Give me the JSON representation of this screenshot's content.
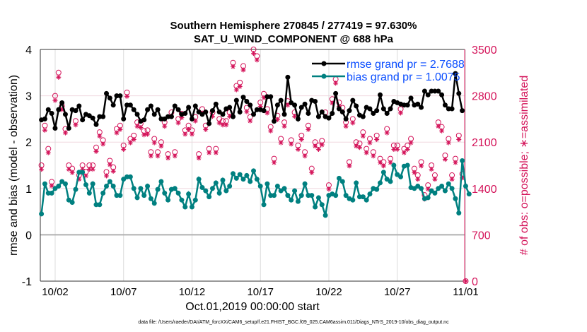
{
  "chart_data": {
    "type": "line",
    "title": [
      "Southern Hemisphere 270845 / 277419 = 97.630%",
      "SAT_U_WIND_COMPONENT @ 688 hPa"
    ],
    "xlabel": "Oct.01,2019 00:00:00 start",
    "ylabel": "rmse and bias (model - observation)",
    "ylabel_right": "# of obs: o=possible; ∗=assimilated",
    "ylim": [
      -1,
      4
    ],
    "ylim_right": [
      0,
      3500
    ],
    "yticks": [
      "-1",
      "0",
      "1",
      "2",
      "3",
      "4"
    ],
    "yticks_right": [
      "0",
      "700",
      "1400",
      "2100",
      "2800",
      "3500"
    ],
    "xticks": [
      "10/02",
      "10/07",
      "10/12",
      "10/17",
      "10/22",
      "10/27",
      "11/01"
    ],
    "x_unit": "days since Oct.01,2019 00:00:00, 6-hourly",
    "legend_position": "top-right",
    "series": [
      {
        "name": "rmse grand pr = 2.7688",
        "color": "#000000",
        "values": [
          2.48,
          2.5,
          2.7,
          2.62,
          2.3,
          2.7,
          2.85,
          2.6,
          2.3,
          2.7,
          2.68,
          2.78,
          2.48,
          2.6,
          2.57,
          2.52,
          2.38,
          2.55,
          2.55,
          3.05,
          2.95,
          2.8,
          3.0,
          3.0,
          2.5,
          2.8,
          2.8,
          2.7,
          2.6,
          2.45,
          2.48,
          2.7,
          2.78,
          2.6,
          2.7,
          2.5,
          2.5,
          2.55,
          2.55,
          2.78,
          2.7,
          2.6,
          2.62,
          2.75,
          2.5,
          2.78,
          2.65,
          2.6,
          2.65,
          2.4,
          2.68,
          2.82,
          2.65,
          2.6,
          2.72,
          2.75,
          2.55,
          2.9,
          2.65,
          2.97,
          2.88,
          2.8,
          2.6,
          2.7,
          2.7,
          2.68,
          2.98,
          2.98,
          2.45,
          2.8,
          2.9,
          2.6,
          3.4,
          2.85,
          2.8,
          2.5,
          2.75,
          2.82,
          2.62,
          2.9,
          2.88,
          2.55,
          2.65,
          2.55,
          2.52,
          2.62,
          3.05,
          2.72,
          2.65,
          2.5,
          2.68,
          2.9,
          2.78,
          2.58,
          2.55,
          2.75,
          2.72,
          2.62,
          2.68,
          3.02,
          2.72,
          2.62,
          2.72,
          2.88,
          2.85,
          2.82,
          2.8,
          2.8,
          2.95,
          2.8,
          2.82,
          2.75,
          3.1,
          3.02,
          3.1,
          3.1,
          3.1,
          3.02,
          2.8,
          2.72,
          2.72,
          3.48,
          3.05,
          2.68
        ]
      },
      {
        "name": "bias grand pr = 1.0075",
        "color": "#008080",
        "values": [
          0.45,
          1.1,
          0.9,
          0.9,
          1.0,
          1.05,
          1.15,
          1.1,
          0.75,
          0.7,
          0.98,
          1.35,
          1.35,
          1.08,
          0.9,
          1.1,
          0.65,
          0.65,
          0.9,
          1.05,
          1.15,
          1.05,
          0.85,
          0.85,
          1.2,
          1.25,
          1.25,
          1.0,
          0.8,
          1.0,
          0.85,
          1.05,
          0.78,
          0.68,
          0.98,
          1.15,
          0.9,
          0.75,
          0.98,
          1.0,
          0.9,
          0.75,
          0.6,
          0.88,
          0.6,
          0.75,
          1.2,
          1.02,
          0.95,
          0.82,
          1.0,
          1.12,
          0.9,
          1.18,
          0.95,
          1.05,
          1.32,
          1.22,
          1.3,
          1.2,
          1.28,
          1.15,
          1.38,
          1.2,
          1.05,
          0.65,
          1.1,
          0.85,
          0.85,
          1.05,
          0.95,
          1.0,
          0.85,
          0.75,
          0.95,
          0.72,
          0.85,
          1.1,
          0.85,
          0.85,
          0.6,
          0.8,
          0.65,
          0.42,
          0.85,
          0.88,
          0.85,
          1.22,
          1.15,
          0.85,
          0.78,
          0.75,
          1.12,
          0.82,
          0.82,
          0.75,
          0.88,
          1.0,
          0.98,
          1.12,
          1.35,
          1.2,
          1.15,
          1.5,
          1.3,
          1.25,
          1.48,
          1.5,
          1.02,
          1.0,
          1.05,
          1.0,
          0.78,
          0.8,
          0.95,
          0.9,
          1.0,
          1.05,
          0.95,
          1.1,
          1.0,
          0.78,
          0.47,
          1.6,
          1.05,
          0.88
        ]
      },
      {
        "name": "obs possible",
        "color": "#d4145a",
        "marker": "o",
        "values": [
          1750,
          2350,
          2000,
          1500,
          2800,
          3150,
          2650,
          2300,
          1750,
          1700,
          2420,
          1600,
          1750,
          1650,
          1750,
          1750,
          2020,
          2250,
          2130,
          1650,
          1820,
          1720,
          2300,
          2350,
          2050,
          2850,
          2150,
          2200,
          2400,
          2380,
          2270,
          2280,
          1950,
          2150,
          1950,
          2100,
          2400,
          1920,
          2550,
          1950,
          2450,
          2530,
          2280,
          2350,
          2280,
          2480,
          1920,
          2600,
          2350,
          2000,
          2550,
          2000,
          2450,
          2420,
          2420,
          2550,
          3300,
          2950,
          3000,
          3250,
          2620,
          2480,
          3500,
          3400,
          2700,
          2830,
          2600,
          2330,
          1850,
          2500,
          2150,
          2400,
          2720,
          2130,
          2550,
          2050,
          2200,
          1950,
          2350,
          1700,
          2100,
          2050,
          2120,
          2550,
          1450,
          2750,
          3050,
          2700,
          2620,
          2400,
          1800,
          2450,
          2100,
          2080,
          2250,
          2000,
          2150,
          1950,
          2200,
          1850,
          1800,
          2300,
          1850,
          2050,
          2050,
          2600,
          2000,
          2050,
          2150,
          1700,
          1600,
          1800,
          1300,
          1450,
          1750,
          1600,
          2400,
          2330,
          1900,
          2150,
          1600,
          1850,
          2200,
          1620,
          0
        ]
      },
      {
        "name": "obs assimilated",
        "color": "#d4145a",
        "marker": "*",
        "values": [
          1690,
          2280,
          1940,
          1440,
          2730,
          3080,
          2590,
          2240,
          1690,
          1640,
          2360,
          1540,
          1690,
          1590,
          1690,
          1690,
          1960,
          2190,
          2070,
          1590,
          1760,
          1660,
          2240,
          2290,
          1990,
          2790,
          2090,
          2140,
          2340,
          2320,
          2210,
          2220,
          1890,
          2090,
          1890,
          2040,
          2340,
          1860,
          2490,
          1890,
          2390,
          2470,
          2220,
          2290,
          2220,
          2420,
          1860,
          2540,
          2290,
          1940,
          2490,
          1940,
          2390,
          2360,
          2360,
          2490,
          3240,
          2890,
          2940,
          3190,
          2560,
          2420,
          3440,
          3340,
          2640,
          2770,
          2540,
          2270,
          1790,
          2440,
          2090,
          2340,
          2660,
          2070,
          2490,
          1990,
          2140,
          1890,
          2290,
          1640,
          2040,
          1990,
          2060,
          2490,
          1390,
          2690,
          2990,
          2640,
          2560,
          2340,
          1740,
          2390,
          2040,
          2020,
          2190,
          1940,
          2090,
          1890,
          2140,
          1790,
          1740,
          2240,
          1790,
          1990,
          1990,
          2540,
          1940,
          1990,
          2090,
          1640,
          1540,
          1740,
          1240,
          1390,
          1690,
          1540,
          2340,
          2270,
          1840,
          2090,
          1540,
          1790,
          2140,
          1560,
          0
        ]
      }
    ]
  },
  "footer": "data file: /Users/raeder/DAI/ATM_forcXX/CAM6_setup/f.e21.FHIST_BGC.f09_025.CAM6assim.011/Diags_NTrS_2019-10/obs_diag_output.nc",
  "colors": {
    "rmse": "#000000",
    "bias": "#008080",
    "obs": "#d4145a",
    "legend_text": "#0a4dff"
  }
}
